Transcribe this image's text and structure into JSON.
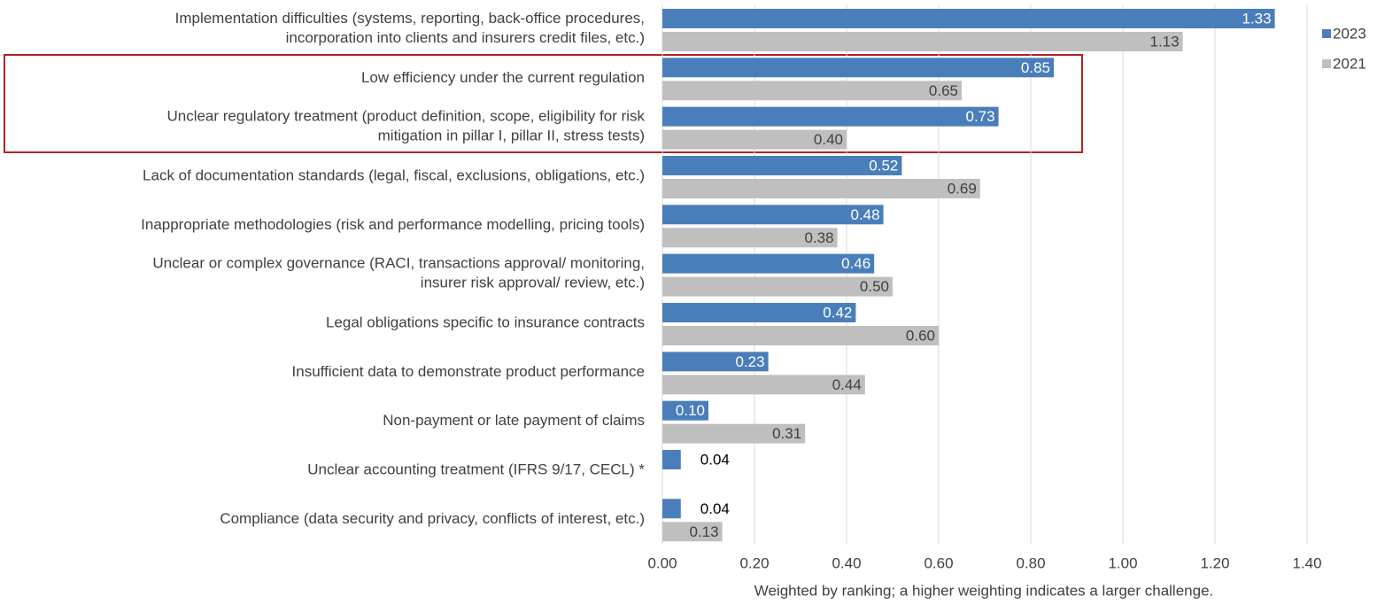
{
  "chart_data": {
    "type": "barh",
    "xlabel": "Weighted by ranking; a higher weighting indicates a larger challenge.",
    "categories": [
      "Implementation difficulties (systems, reporting, back-office procedures,\nincorporation into clients and insurers credit files, etc.)",
      "Low efficiency under the current regulation",
      "Unclear regulatory treatment (product definition, scope, eligibility for risk\nmitigation in pillar I, pillar II, stress tests)",
      "Lack of documentation standards (legal, fiscal, exclusions, obligations, etc.)",
      "Inappropriate methodologies (risk and performance modelling, pricing tools)",
      "Unclear or complex governance (RACI, transactions approval/ monitoring,\ninsurer risk approval/ review, etc.)",
      "Legal obligations specific to insurance contracts",
      "Insufficient data to demonstrate product performance",
      "Non-payment or late payment of claims",
      "Unclear accounting treatment (IFRS 9/17, CECL) *",
      "Compliance (data security and privacy, conflicts of interest, etc.)"
    ],
    "series": [
      {
        "name": "2023",
        "color": "#4a7ebb",
        "values": [
          1.33,
          0.85,
          0.73,
          0.52,
          0.48,
          0.46,
          0.42,
          0.23,
          0.1,
          0.04,
          0.04
        ],
        "value_labels": [
          "1.33",
          "0.85",
          "0.73",
          "0.52",
          "0.48",
          "0.46",
          "0.42",
          "0.23",
          "0.10",
          "0.04",
          "0.04"
        ]
      },
      {
        "name": "2021",
        "color": "#bfbfbf",
        "values": [
          1.13,
          0.65,
          0.4,
          0.69,
          0.38,
          0.5,
          0.6,
          0.44,
          0.31,
          null,
          0.13
        ],
        "value_labels": [
          "1.13",
          "0.65",
          "0.40",
          "0.69",
          "0.38",
          "0.50",
          "0.60",
          "0.44",
          "0.31",
          null,
          "0.13"
        ]
      }
    ],
    "xlim": [
      0,
      1.4
    ],
    "xticks": [
      {
        "value": 0,
        "label": "0.00"
      },
      {
        "value": 0.2,
        "label": "0.20"
      },
      {
        "value": 0.4,
        "label": "0.40"
      },
      {
        "value": 0.6,
        "label": "0.60"
      },
      {
        "value": 0.8,
        "label": "0.80"
      },
      {
        "value": 1,
        "label": "1.00"
      },
      {
        "value": 1.2,
        "label": "1.20"
      },
      {
        "value": 1.4,
        "label": "1.40"
      }
    ],
    "grid": true,
    "legend": "right"
  }
}
